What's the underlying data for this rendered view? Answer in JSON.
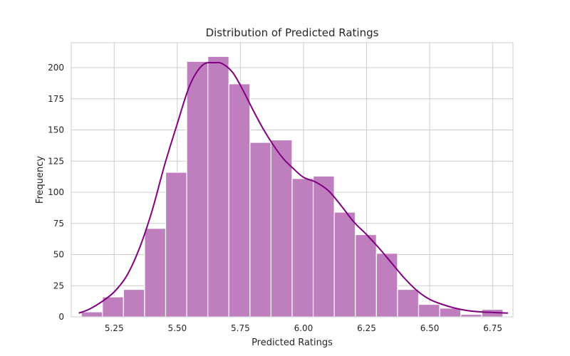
{
  "chart_data": {
    "type": "bar",
    "title": "Distribution of Predicted Ratings",
    "xlabel": "Predicted Ratings",
    "ylabel": "Frequency",
    "xlim": [
      5.08,
      6.83
    ],
    "ylim": [
      0,
      220
    ],
    "xticks": [
      5.25,
      5.5,
      5.75,
      6.0,
      6.25,
      6.5,
      6.75
    ],
    "xtick_labels": [
      "5.25",
      "5.50",
      "5.75",
      "6.00",
      "6.25",
      "6.50",
      "6.75"
    ],
    "yticks": [
      0,
      25,
      50,
      75,
      100,
      125,
      150,
      175,
      200
    ],
    "grid": true,
    "bar_color": "#bf7fbf",
    "line_color": "#800080",
    "bins": {
      "edges": [
        5.12,
        5.2035,
        5.287,
        5.3705,
        5.454,
        5.5375,
        5.621,
        5.7045,
        5.788,
        5.8715,
        5.955,
        6.0385,
        6.122,
        6.2055,
        6.289,
        6.3725,
        6.456,
        6.5395,
        6.623,
        6.7065,
        6.79
      ],
      "counts": [
        4,
        16,
        22,
        71,
        116,
        205,
        209,
        187,
        140,
        142,
        111,
        113,
        84,
        66,
        51,
        22,
        10,
        7,
        2,
        6
      ]
    },
    "kde": {
      "x": [
        5.11,
        5.15,
        5.2,
        5.25,
        5.3,
        5.35,
        5.4,
        5.45,
        5.5,
        5.55,
        5.6,
        5.65,
        5.68,
        5.72,
        5.76,
        5.8,
        5.84,
        5.88,
        5.92,
        5.96,
        6.0,
        6.05,
        6.1,
        6.15,
        6.2,
        6.25,
        6.3,
        6.35,
        6.4,
        6.45,
        6.5,
        6.55,
        6.6,
        6.65,
        6.7,
        6.75,
        6.81
      ],
      "y": [
        3,
        6,
        12,
        20,
        33,
        55,
        85,
        122,
        155,
        186,
        202,
        204,
        203,
        196,
        182,
        166,
        151,
        138,
        127,
        119,
        112,
        108,
        101,
        89,
        76,
        66,
        55,
        43,
        31,
        21,
        14,
        10,
        7,
        5,
        4,
        3.5,
        3
      ]
    }
  }
}
